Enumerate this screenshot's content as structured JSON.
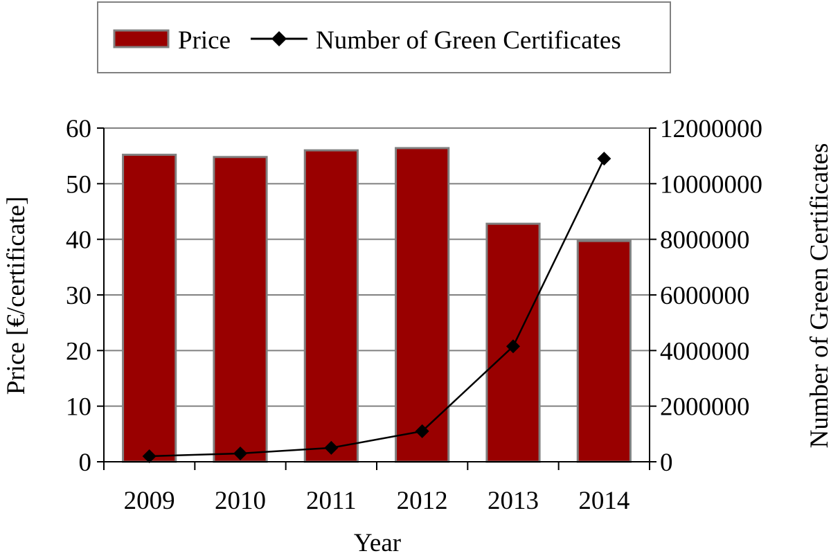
{
  "chart_data": {
    "type": "bar",
    "categories": [
      "2009",
      "2010",
      "2011",
      "2012",
      "2013",
      "2014"
    ],
    "xlabel": "Year",
    "ylabel": "Price  [€/certificate]",
    "y2label": "Number of Green  Certificates",
    "ylim": [
      0,
      60
    ],
    "y2lim": [
      0,
      12000000
    ],
    "yticks": [
      "0",
      "10",
      "20",
      "30",
      "40",
      "50",
      "60"
    ],
    "y2ticks": [
      "0",
      "2000000",
      "4000000",
      "6000000",
      "8000000",
      "10000000",
      "12000000"
    ],
    "grid": true,
    "legend_position": "top",
    "series": [
      {
        "name": "Price",
        "kind": "bar",
        "axis": "left",
        "color": "#990000",
        "values": [
          55.2,
          54.8,
          56.0,
          56.4,
          42.8,
          39.7
        ]
      },
      {
        "name": "Number of Green Certificates",
        "kind": "line",
        "axis": "right",
        "marker": "diamond",
        "color": "#000000",
        "values": [
          200000,
          300000,
          500000,
          1100000,
          4150000,
          10900000
        ]
      }
    ]
  }
}
